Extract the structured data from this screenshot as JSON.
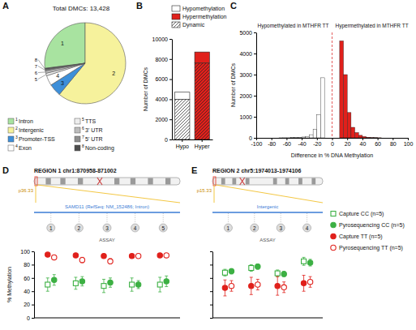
{
  "chart_data": [
    {
      "panel": "A",
      "type": "pie",
      "title": "Total DMCs: 13,428",
      "categories": [
        "Intron",
        "Intergenic",
        "Promoter-TSS",
        "Exon",
        "TTS",
        "3' UTR",
        "5' UTR",
        "Non-coding"
      ],
      "category_numbers": [
        "1",
        "2",
        "3",
        "4",
        "5",
        "6",
        "7",
        "8"
      ],
      "values": [
        27,
        61,
        5,
        4,
        1,
        1,
        0.5,
        0.5
      ],
      "colors": [
        "#a8e3a0",
        "#f6f29c",
        "#3d8fd9",
        "#ffffff",
        "#eeeeee",
        "#bdbdbd",
        "#8e8e8e",
        "#4d4d4d"
      ]
    },
    {
      "panel": "B",
      "type": "bar",
      "stacked": true,
      "categories": [
        "Hypo",
        "Hyper"
      ],
      "y_label": "Number of DMCs",
      "ylim": [
        0,
        10000
      ],
      "yticks": [
        0,
        2000,
        4000,
        6000,
        8000,
        10000
      ],
      "legend": "top",
      "series": [
        {
          "name": "Dynamic",
          "colors": [
            "#ffffff",
            "#e0201b"
          ],
          "values": [
            4000,
            7600
          ]
        },
        {
          "name": "Hypermethylation",
          "color": "#e0201b",
          "values": [
            null,
            1100
          ]
        },
        {
          "name": "Hypomethylation",
          "color": "#ffffff",
          "values": [
            700,
            null
          ]
        }
      ]
    },
    {
      "panel": "C",
      "type": "histogram",
      "bins": [
        -70,
        -65,
        -60,
        -55,
        -50,
        -45,
        -40,
        -35,
        -30,
        -25,
        -20,
        -15,
        -10,
        -5,
        0,
        5,
        10,
        15,
        20,
        25,
        30,
        35,
        40,
        45,
        50,
        55,
        60,
        65
      ],
      "values": [
        3,
        5,
        5,
        10,
        15,
        25,
        40,
        70,
        150,
        400,
        1100,
        2850,
        0,
        0,
        0,
        0,
        4600,
        3000,
        1200,
        500,
        250,
        120,
        60,
        30,
        15,
        8,
        5
      ],
      "colors": [
        "#ffffff",
        "#ffffff",
        "#ffffff",
        "#ffffff",
        "#ffffff",
        "#ffffff",
        "#ffffff",
        "#ffffff",
        "#ffffff",
        "#ffffff",
        "#ffffff",
        "#ffffff",
        "#ffffff",
        "#ffffff",
        "#ffffff",
        "#ffffff",
        "#e0201b",
        "#e0201b",
        "#e0201b",
        "#e0201b",
        "#e0201b",
        "#e0201b",
        "#e0201b",
        "#e0201b",
        "#e0201b",
        "#e0201b",
        "#e0201b"
      ],
      "x_label": "Difference in % DNA Methylation",
      "y_label": "Number of DMCs",
      "xlim": [
        -100,
        100
      ],
      "xticks": [
        -100,
        -80,
        -60,
        -40,
        -20,
        0,
        20,
        40,
        60,
        80,
        100
      ],
      "ylim": [
        0,
        5000
      ],
      "yticks": [
        0,
        1000,
        2000,
        3000,
        4000,
        5000
      ],
      "reference_line": 0,
      "annotations": [
        "Hypomethylated in MTHFR TT",
        "Hypermethylated in MTHFR TT"
      ]
    },
    {
      "panel": "D",
      "type": "scatter",
      "title": "REGION 1 chr1:870958-871002",
      "band": "p36.33",
      "track_label": "SAMD11 (RefSeq: NM_152486; Intron)",
      "x_label": "ASSAY",
      "categories": [
        "1",
        "2",
        "3",
        "4",
        "5"
      ],
      "y_label": "% Methylation",
      "ylim": [
        0,
        100
      ],
      "yticks": [
        0,
        20,
        40,
        60,
        80,
        100
      ],
      "series": [
        {
          "color": "#3cb043",
          "marker": "square-open",
          "values": [
            50,
            52,
            48,
            50,
            50
          ],
          "errors": [
            10,
            9,
            10,
            10,
            11
          ]
        },
        {
          "color": "#3cb043",
          "marker": "circle",
          "values": [
            57,
            55,
            53,
            50,
            55
          ],
          "errors": [
            8,
            7,
            7,
            6,
            8
          ]
        },
        {
          "color": "#e0201b",
          "marker": "circle",
          "values": [
            95,
            94,
            93,
            93,
            94
          ],
          "errors": [
            2,
            2,
            2,
            2,
            2
          ]
        },
        {
          "color": "#e0201b",
          "marker": "circle-open",
          "values": [
            91,
            87,
            85,
            93,
            94
          ],
          "errors": [
            3,
            4,
            4,
            2,
            2
          ]
        }
      ]
    },
    {
      "panel": "E",
      "type": "scatter",
      "title": "REGION 2 chr5:1974013-1974106",
      "band": "p15.33",
      "track_label": "Intergenic",
      "x_label": "ASSAY",
      "categories": [
        "1",
        "2",
        "3",
        "4"
      ],
      "ylim": [
        0,
        100
      ],
      "yticks": [
        0,
        20,
        40,
        60,
        80,
        100
      ],
      "tick_labels": false,
      "legend": "right",
      "series": [
        {
          "name": "Capture CC (n=5)",
          "color": "#3cb043",
          "marker": "square-open",
          "values": [
            68,
            75,
            67,
            85
          ],
          "errors": [
            5,
            5,
            5,
            6
          ]
        },
        {
          "name": "Pyrosequencing CC (n=5)",
          "color": "#3cb043",
          "marker": "circle",
          "values": [
            70,
            77,
            66,
            83
          ],
          "errors": [
            4,
            4,
            4,
            5
          ]
        },
        {
          "name": "Capture TT (n=5)",
          "color": "#e0201b",
          "marker": "circle",
          "values": [
            45,
            48,
            48,
            52
          ],
          "errors": [
            12,
            13,
            14,
            12
          ]
        },
        {
          "name": "Pyrosequencing TT (n=5)",
          "color": "#e0201b",
          "marker": "circle-open",
          "values": [
            48,
            50,
            46,
            54
          ],
          "errors": [
            8,
            8,
            8,
            8
          ]
        }
      ]
    }
  ]
}
